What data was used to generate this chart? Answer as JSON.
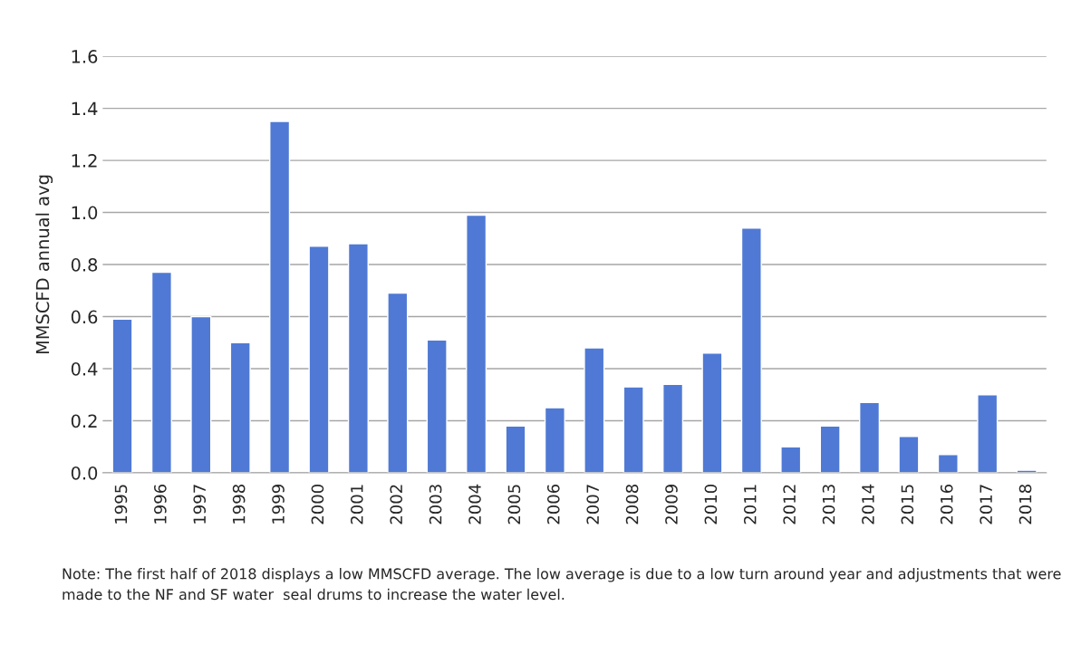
{
  "chart_data": {
    "type": "bar",
    "ylabel": "MMSCFD annual avg",
    "categories": [
      "1995",
      "1996",
      "1997",
      "1998",
      "1999",
      "2000",
      "2001",
      "2002",
      "2003",
      "2004",
      "2005",
      "2006",
      "2007",
      "2008",
      "2009",
      "2010",
      "2011",
      "2012",
      "2013",
      "2014",
      "2015",
      "2016",
      "2017",
      "2018"
    ],
    "values": [
      0.59,
      0.77,
      0.6,
      0.5,
      1.35,
      0.87,
      0.88,
      0.69,
      0.51,
      0.99,
      0.18,
      0.25,
      0.48,
      0.33,
      0.34,
      0.46,
      0.94,
      0.1,
      0.18,
      0.27,
      0.14,
      0.07,
      0.3,
      0.01
    ],
    "color": "#4f79d4",
    "ylim": [
      0,
      1.6
    ],
    "yticks": [
      {
        "value": 0,
        "label": "0.0"
      },
      {
        "value": 0.2,
        "label": "0.2"
      },
      {
        "value": 0.4,
        "label": "0.4"
      },
      {
        "value": 0.6,
        "label": "0.6"
      },
      {
        "value": 0.8,
        "label": "0.8"
      },
      {
        "value": 1.0,
        "label": "1.0"
      },
      {
        "value": 1.2,
        "label": "1.2"
      },
      {
        "value": 1.4,
        "label": "1.4"
      },
      {
        "value": 1.6,
        "label": "1.6"
      }
    ],
    "grid": "y",
    "annotations": [
      "Note: The first half of 2018 displays a low MMSCFD average. The low average is due to a low turn around year and adjustments that were made to the NF and SF water  seal drums to increase the water level."
    ]
  }
}
